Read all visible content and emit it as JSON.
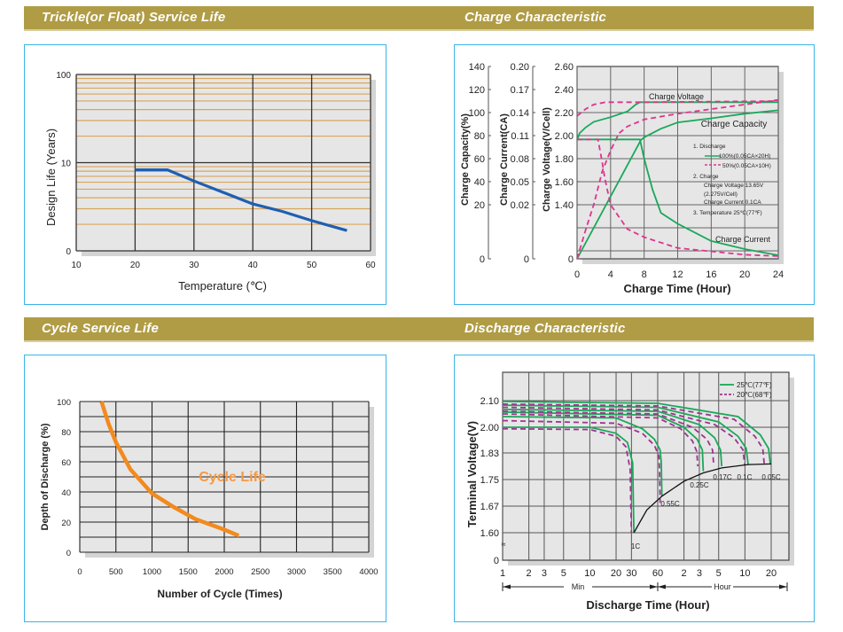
{
  "sections": {
    "trickle": "Trickle(or Float) Service Life",
    "charge": "Charge Characteristic",
    "cycle": "Cycle Service Life",
    "discharge": "Discharge Characteristic"
  },
  "colors": {
    "header_bar": "#b09c45",
    "panel_border": "#3bb4e8",
    "plot_bg": "#e6e6e6",
    "life_line": "#1f5fb0",
    "minor_grid": "#d9a55a",
    "green": "#1aa85a",
    "pink": "#e0338f",
    "purple": "#a0338f",
    "orange": "#f28a1e"
  },
  "chart_data": [
    {
      "id": "trickle",
      "type": "line",
      "title": "Trickle(or Float) Service Life",
      "xlabel": "Temperature (℃)",
      "ylabel": "Design Life (Years)",
      "yscale": "log",
      "xlim": [
        10,
        60
      ],
      "xticks": [
        "10",
        "20",
        "30",
        "40",
        "50",
        "60"
      ],
      "yticks": [
        "0",
        "10",
        "100"
      ],
      "grid": true,
      "series": [
        {
          "name": "Design Life",
          "x": [
            20,
            25.5,
            30,
            35,
            40,
            45,
            50,
            56
          ],
          "y": [
            8.3,
            8.3,
            6.2,
            4.6,
            3.4,
            2.8,
            2.2,
            1.7
          ]
        }
      ]
    },
    {
      "id": "charge",
      "type": "line",
      "title": "Charge Characteristic",
      "xlabel": "Charge Time (Hour)",
      "xlim": [
        0,
        24
      ],
      "xticks": [
        "0",
        "4",
        "8",
        "12",
        "16",
        "20",
        "24"
      ],
      "axes": {
        "capacity": {
          "label": "Charge Capacity(%)",
          "ticks": [
            "0",
            "20",
            "40",
            "60",
            "80",
            "100",
            "120",
            "140"
          ]
        },
        "current": {
          "label": "Charge Current(CA)",
          "ticks": [
            "0",
            "0.02",
            "0.05",
            "0.08",
            "0.11",
            "0.14",
            "0.17",
            "0.20"
          ]
        },
        "voltage": {
          "label": "Charge Voltage(V/Cell)",
          "ticks": [
            "0",
            "1.40",
            "1.60",
            "1.80",
            "2.00",
            "2.20",
            "2.40",
            "2.60"
          ]
        }
      },
      "curve_labels": {
        "voltage": "Charge Voltage",
        "capacity": "Charge Capacity",
        "current": "Charge Current"
      },
      "notes": {
        "n1": "1. Discharge",
        "full": "100%(0.05CA×20H)",
        "half": "50%(0.05CA×10H)",
        "n2": "2. Charge",
        "cv": "Charge Voltage 13.65V",
        "cvc": "(2.275V/Cell)",
        "cc": "Charge Current 0.1CA",
        "n3": "3. Temperature 25℃(77℉)"
      },
      "series": [
        {
          "name": "Charge Voltage 100%",
          "axis": "voltage",
          "discharge": "100%",
          "points": [
            [
              0,
              1.96
            ],
            [
              0.3,
              2.02
            ],
            [
              1,
              2.07
            ],
            [
              2,
              2.12
            ],
            [
              4,
              2.16
            ],
            [
              6,
              2.21
            ],
            [
              7,
              2.27
            ],
            [
              7.5,
              2.29
            ],
            [
              24,
              2.29
            ]
          ]
        },
        {
          "name": "Charge Voltage 50%",
          "axis": "voltage",
          "discharge": "50%",
          "points": [
            [
              0,
              2.17
            ],
            [
              1,
              2.23
            ],
            [
              2,
              2.27
            ],
            [
              3.4,
              2.29
            ],
            [
              8,
              2.29
            ],
            [
              24,
              2.3
            ]
          ]
        },
        {
          "name": "Charge Capacity 100%",
          "axis": "capacity",
          "discharge": "100%",
          "points": [
            [
              0,
              0
            ],
            [
              7.6,
              76
            ],
            [
              8,
              78.5
            ],
            [
              10,
              86
            ],
            [
              12,
              91.5
            ],
            [
              16,
              95
            ],
            [
              20,
              99
            ],
            [
              24,
              102
            ]
          ]
        },
        {
          "name": "Charge Capacity 50%",
          "axis": "capacity",
          "discharge": "50%",
          "points": [
            [
              0,
              0
            ],
            [
              1,
              10.5
            ],
            [
              2,
              20.3
            ],
            [
              3,
              49
            ],
            [
              4,
              67
            ],
            [
              5,
              82
            ],
            [
              6,
              88
            ],
            [
              8,
              94
            ],
            [
              12,
              99
            ],
            [
              16,
              103
            ],
            [
              24,
              111
            ]
          ]
        },
        {
          "name": "Charge Current 100%",
          "axis": "current",
          "discharge": "100%",
          "points": [
            [
              0,
              0.105
            ],
            [
              7.5,
              0.105
            ],
            [
              8,
              0.08
            ],
            [
              9,
              0.04
            ],
            [
              10,
              0.017
            ],
            [
              12,
              0.013
            ],
            [
              16,
              0.0066
            ],
            [
              20,
              0.0036
            ],
            [
              24,
              0.0013
            ]
          ]
        },
        {
          "name": "Charge Current 50%",
          "axis": "current",
          "discharge": "50%",
          "points": [
            [
              0,
              0.105
            ],
            [
              2.5,
              0.105
            ],
            [
              3,
              0.075
            ],
            [
              3.3,
              0.055
            ],
            [
              4,
              0.02
            ],
            [
              6,
              0.011
            ],
            [
              8,
              0.008
            ],
            [
              12,
              0.004
            ],
            [
              20,
              0.0015
            ],
            [
              24,
              0.001
            ]
          ]
        }
      ]
    },
    {
      "id": "cycle",
      "type": "line",
      "title": "Cycle Service Life",
      "xlabel": "Number of Cycle (Times)",
      "ylabel": "Depth of Discharge (%)",
      "xlim": [
        0,
        4000
      ],
      "ylim": [
        0,
        100
      ],
      "xticks": [
        "0",
        "500",
        "1000",
        "1500",
        "2000",
        "2500",
        "3000",
        "3500",
        "4000"
      ],
      "yticks": [
        "0",
        "20",
        "40",
        "60",
        "80",
        "100"
      ],
      "annotation": "Cycle Life",
      "grid": true,
      "series": [
        {
          "name": "Cycle Life",
          "x": [
            300,
            400,
            500,
            700,
            1000,
            1300,
            1600,
            2000,
            2200
          ],
          "y": [
            100,
            85,
            73,
            55,
            39,
            30,
            22,
            15,
            11
          ]
        }
      ]
    },
    {
      "id": "discharge",
      "type": "line",
      "title": "Discharge Characteristic",
      "xlabel": "Discharge Time (Hour)",
      "ylabel": "Terminal Voltage(V)",
      "xscale": "log",
      "x_unit": "minutes",
      "xticks": [
        {
          "min": 1,
          "label": "1"
        },
        {
          "min": 2,
          "label": "2"
        },
        {
          "min": 3,
          "label": "3"
        },
        {
          "min": 5,
          "label": "5"
        },
        {
          "min": 10,
          "label": "10"
        },
        {
          "min": 20,
          "label": "20"
        },
        {
          "min": 30,
          "label": "30"
        },
        {
          "min": 60,
          "label": "60"
        },
        {
          "min": 120,
          "label": "2"
        },
        {
          "min": 180,
          "label": "3"
        },
        {
          "min": 300,
          "label": "5"
        },
        {
          "min": 600,
          "label": "10"
        },
        {
          "min": 1200,
          "label": "20"
        }
      ],
      "range_labels": {
        "min": "Min",
        "hour": "Hour"
      },
      "yticks": [
        "0",
        "1.60",
        "1.67",
        "1.75",
        "1.83",
        "2.00",
        "2.10"
      ],
      "axis_break": "≈",
      "legend": {
        "t25": "25℃(77℉)",
        "t20": "20℃(68℉)",
        "placement": "top-right"
      },
      "rates": [
        "1C",
        "0.55C",
        "0.25C",
        "0.17C",
        "0.1C",
        "0.05C"
      ],
      "series": [
        {
          "rate": "1C",
          "temp": "25",
          "points": [
            [
              1,
              2.0
            ],
            [
              10,
              2.0
            ],
            [
              20,
              1.96
            ],
            [
              27,
              1.9
            ],
            [
              31,
              1.8
            ],
            [
              32,
              1.6
            ]
          ]
        },
        {
          "rate": "1C",
          "temp": "20",
          "points": [
            [
              1,
              1.99
            ],
            [
              10,
              1.985
            ],
            [
              20,
              1.94
            ],
            [
              26,
              1.87
            ],
            [
              29,
              1.78
            ],
            [
              30,
              1.6
            ]
          ]
        },
        {
          "rate": "0.55C",
          "temp": "25",
          "points": [
            [
              1,
              2.04
            ],
            [
              20,
              2.035
            ],
            [
              40,
              1.99
            ],
            [
              55,
              1.92
            ],
            [
              64,
              1.85
            ],
            [
              66,
              1.8
            ],
            [
              67,
              1.7
            ]
          ]
        },
        {
          "rate": "0.55C",
          "temp": "20",
          "points": [
            [
              1,
              2.025
            ],
            [
              20,
              2.015
            ],
            [
              40,
              1.96
            ],
            [
              55,
              1.88
            ],
            [
              62,
              1.82
            ],
            [
              63,
              1.77
            ],
            [
              64,
              1.68
            ]
          ]
        },
        {
          "rate": "0.25C",
          "temp": "25",
          "points": [
            [
              1,
              2.057
            ],
            [
              60,
              2.045
            ],
            [
              120,
              2.0
            ],
            [
              170,
              1.92
            ],
            [
              195,
              1.85
            ],
            [
              200,
              1.775
            ]
          ]
        },
        {
          "rate": "0.25C",
          "temp": "20",
          "points": [
            [
              1,
              2.05
            ],
            [
              60,
              2.035
            ],
            [
              110,
              1.99
            ],
            [
              150,
              1.91
            ],
            [
              168,
              1.84
            ],
            [
              173,
              1.79
            ]
          ]
        },
        {
          "rate": "0.17C",
          "temp": "25",
          "points": [
            [
              1,
              2.067
            ],
            [
              60,
              2.06
            ],
            [
              180,
              2.01
            ],
            [
              270,
              1.93
            ],
            [
              315,
              1.85
            ],
            [
              325,
              1.79
            ]
          ]
        },
        {
          "rate": "0.17C",
          "temp": "20",
          "points": [
            [
              1,
              2.06
            ],
            [
              60,
              2.05
            ],
            [
              150,
              2.0
            ],
            [
              220,
              1.92
            ],
            [
              255,
              1.85
            ],
            [
              263,
              1.795
            ]
          ]
        },
        {
          "rate": "0.1C",
          "temp": "25",
          "points": [
            [
              1,
              2.083
            ],
            [
              60,
              2.075
            ],
            [
              300,
              2.02
            ],
            [
              500,
              1.94
            ],
            [
              620,
              1.86
            ],
            [
              653,
              1.795
            ]
          ]
        },
        {
          "rate": "0.1C",
          "temp": "20",
          "points": [
            [
              1,
              2.075
            ],
            [
              60,
              2.065
            ],
            [
              270,
              2.01
            ],
            [
              450,
              1.93
            ],
            [
              570,
              1.85
            ],
            [
              595,
              1.795
            ]
          ]
        },
        {
          "rate": "0.05C",
          "temp": "25",
          "points": [
            [
              1,
              2.097
            ],
            [
              60,
              2.09
            ],
            [
              500,
              2.04
            ],
            [
              900,
              1.95
            ],
            [
              1120,
              1.86
            ],
            [
              1175,
              1.795
            ]
          ]
        },
        {
          "rate": "0.05C",
          "temp": "20",
          "points": [
            [
              1,
              2.087
            ],
            [
              60,
              2.08
            ],
            [
              450,
              2.03
            ],
            [
              780,
              1.94
            ],
            [
              960,
              1.86
            ],
            [
              1000,
              1.795
            ]
          ]
        }
      ],
      "end_voltage_curve": [
        [
          32,
          1.6
        ],
        [
          45,
          1.66
        ],
        [
          67,
          1.7
        ],
        [
          120,
          1.745
        ],
        [
          200,
          1.77
        ],
        [
          325,
          1.785
        ],
        [
          653,
          1.795
        ],
        [
          1200,
          1.797
        ]
      ]
    }
  ]
}
